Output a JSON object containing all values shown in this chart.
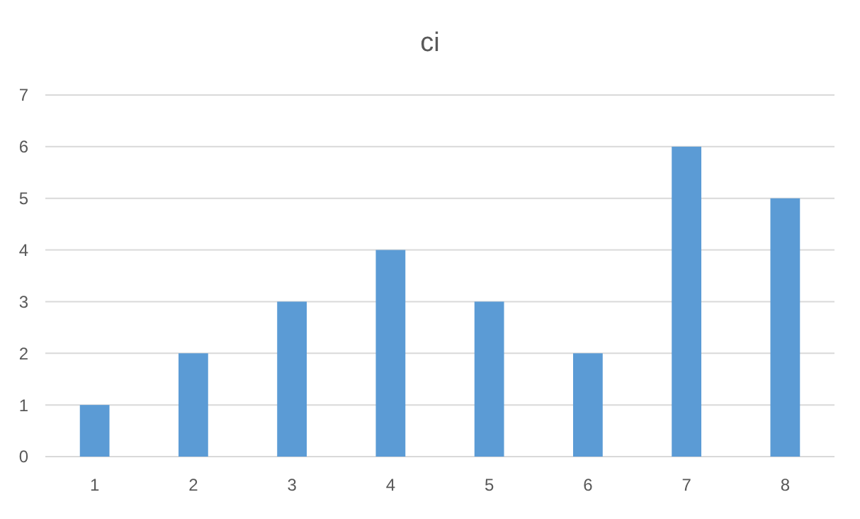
{
  "chart_data": {
    "type": "bar",
    "title": "ci",
    "categories": [
      "1",
      "2",
      "3",
      "4",
      "5",
      "6",
      "7",
      "8"
    ],
    "values": [
      1,
      2,
      3,
      4,
      3,
      2,
      6,
      5
    ],
    "color": "#5b9bd5",
    "ylim": [
      0,
      7
    ],
    "yticks": [
      0,
      1,
      2,
      3,
      4,
      5,
      6,
      7
    ],
    "grid": "y"
  }
}
